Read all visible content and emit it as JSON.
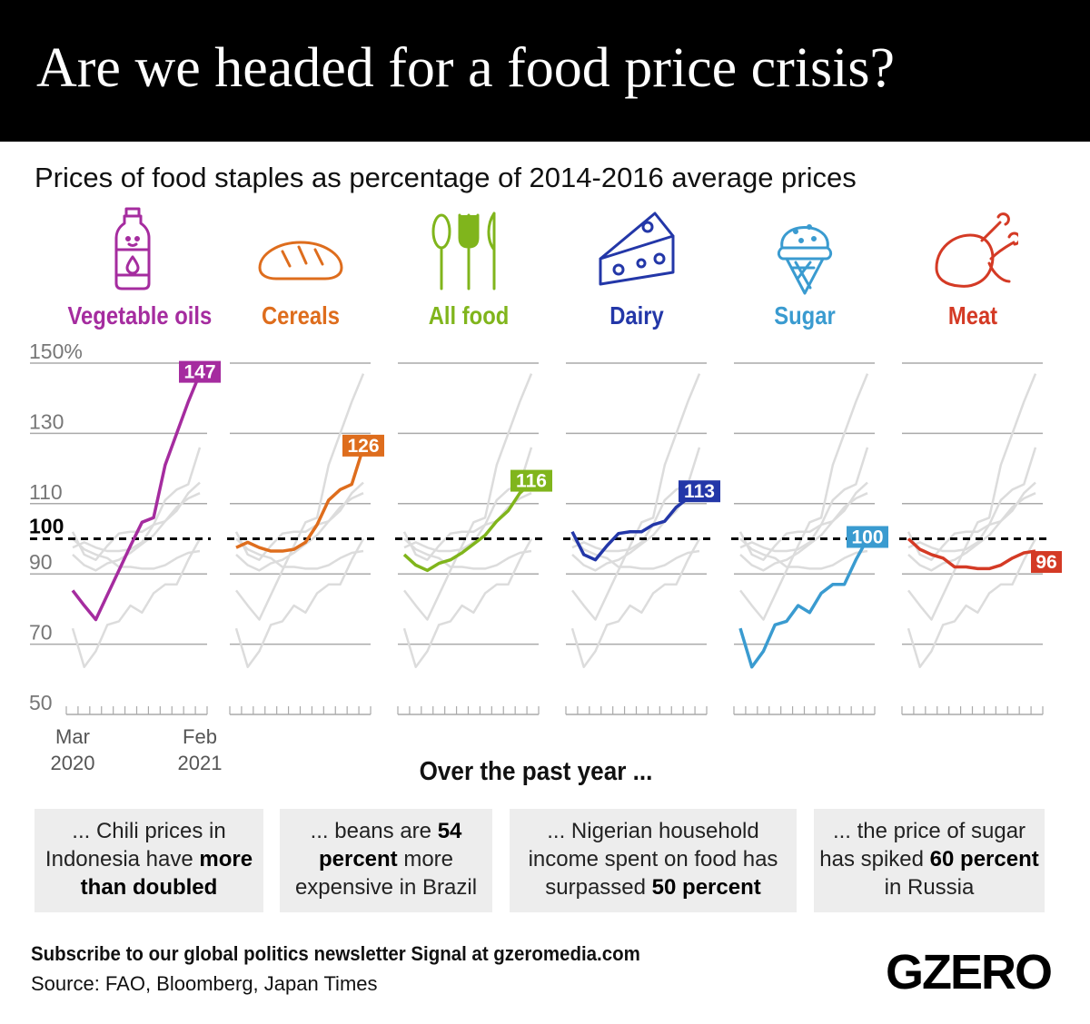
{
  "header": {
    "title": "Are we headed for a food price crisis?"
  },
  "subtitle": "Prices of food staples as percentage of 2014-2016 average prices",
  "chart_data": {
    "type": "line",
    "layout": "small multiples",
    "x": [
      "Mar 2020",
      "Apr 2020",
      "May 2020",
      "Jun 2020",
      "Jul 2020",
      "Aug 2020",
      "Sep 2020",
      "Oct 2020",
      "Nov 2020",
      "Dec 2020",
      "Jan 2021",
      "Feb 2021"
    ],
    "x_tick_labels": [
      {
        "month": "Mar",
        "year": "2020"
      },
      {
        "month": "Feb",
        "year": "2021"
      }
    ],
    "ylim": [
      50,
      150
    ],
    "y_ticks": [
      "150%",
      "130",
      "110",
      "100",
      "90",
      "70",
      "50"
    ],
    "reference_line": 100,
    "grid": true,
    "series": [
      {
        "name": "Vegetable oils",
        "color": "#a52c9f",
        "icon": "oil-bottle-icon",
        "end_label": "147",
        "values": [
          85.3,
          81,
          77,
          84,
          91,
          98,
          104.7,
          106,
          121,
          130,
          139,
          147
        ]
      },
      {
        "name": "Cereals",
        "color": "#de6d1d",
        "icon": "bread-icon",
        "end_label": "126",
        "values": [
          97.5,
          99,
          97.5,
          96.5,
          96.5,
          97,
          99,
          104,
          111,
          114,
          115.5,
          126
        ]
      },
      {
        "name": "All food",
        "color": "#80b51c",
        "icon": "cutlery-icon",
        "end_label": "116",
        "values": [
          95.5,
          92.5,
          91,
          93,
          94,
          96,
          98.5,
          101,
          105,
          108,
          113,
          116
        ]
      },
      {
        "name": "Dairy",
        "color": "#2337a8",
        "icon": "cheese-icon",
        "end_label": "113",
        "values": [
          102,
          95.5,
          94,
          98,
          101.5,
          102,
          102,
          104,
          105,
          109,
          111.5,
          113
        ]
      },
      {
        "name": "Sugar",
        "color": "#3a9bd0",
        "icon": "ice-cream-icon",
        "end_label": "100",
        "values": [
          74.5,
          63.5,
          68,
          75.5,
          76.5,
          81,
          79,
          84.5,
          87,
          87,
          94,
          100
        ]
      },
      {
        "name": "Meat",
        "color": "#d43a25",
        "icon": "chicken-leg-icon",
        "end_label": "96",
        "values": [
          100,
          97,
          95.5,
          94.5,
          92,
          92,
          91.5,
          91.5,
          92.5,
          94.5,
          96,
          96.5
        ]
      }
    ]
  },
  "over_title": "Over the past year ...",
  "facts": [
    [
      {
        "t": "... Chili prices in Indonesia have "
      },
      {
        "t": "more than doubled",
        "b": true
      }
    ],
    [
      {
        "t": "... beans are "
      },
      {
        "t": "54 percent",
        "b": true
      },
      {
        "t": " more expensive in Brazil"
      }
    ],
    [
      {
        "t": "... Nigerian household income spent on food has surpassed "
      },
      {
        "t": "50 percent",
        "b": true
      }
    ],
    [
      {
        "t": "... the price of sugar has spiked "
      },
      {
        "t": "60 percent",
        "b": true
      },
      {
        "t": " in Russia"
      }
    ]
  ],
  "footer": {
    "subscribe": "Subscribe to our global politics newsletter Signal at gzeromedia.com",
    "source": "Source: FAO, Bloomberg, Japan Times",
    "logo": "GZERO"
  }
}
